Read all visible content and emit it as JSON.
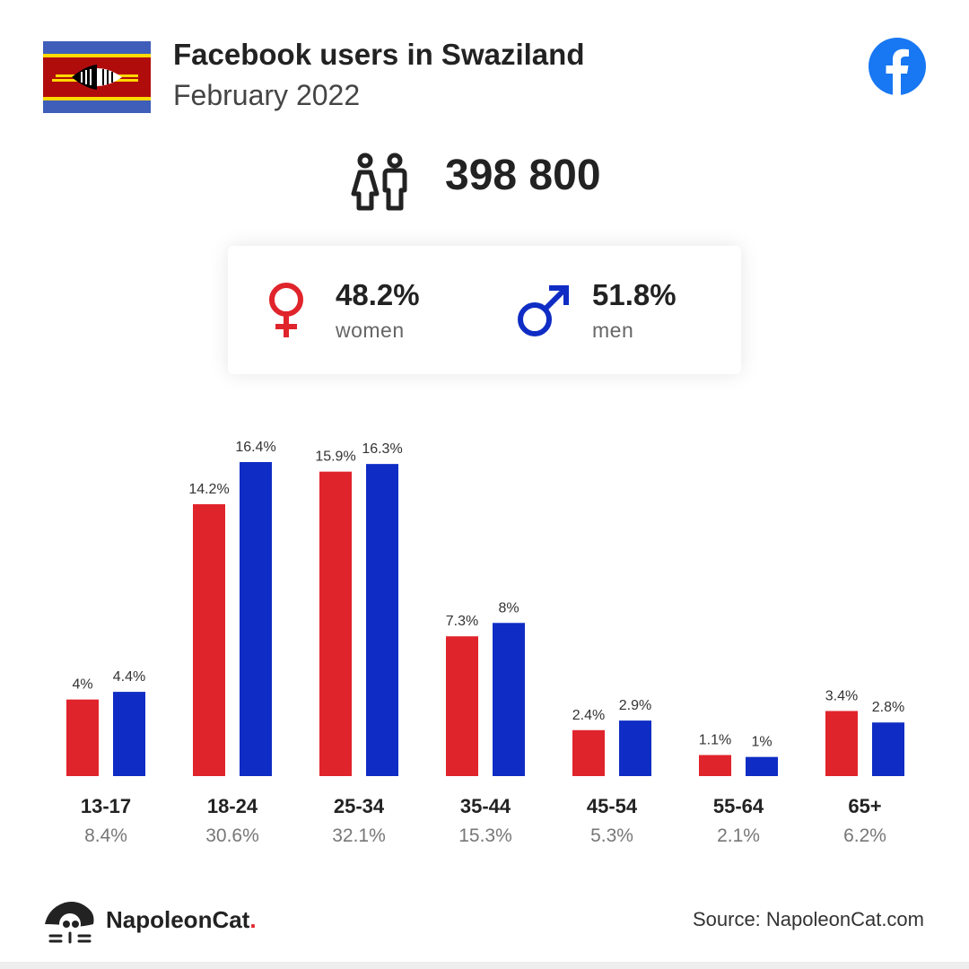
{
  "header": {
    "title": "Facebook users in Swaziland",
    "subtitle": "February 2022",
    "flag_icon": "swaziland-flag-icon",
    "platform_icon": "facebook-icon"
  },
  "summary": {
    "total_users": "398 800",
    "users_icon": "people-icon",
    "women": {
      "pct": "48.2%",
      "label": "women",
      "icon": "female-symbol-icon"
    },
    "men": {
      "pct": "51.8%",
      "label": "men",
      "icon": "male-symbol-icon"
    }
  },
  "colors": {
    "women": "#e0242b",
    "men": "#0f2dc4",
    "facebook": "#1877f2"
  },
  "chart_data": {
    "type": "bar",
    "categories": [
      "13-17",
      "18-24",
      "25-34",
      "35-44",
      "45-54",
      "55-64",
      "65+"
    ],
    "totals": [
      "8.4%",
      "30.6%",
      "32.1%",
      "15.3%",
      "5.3%",
      "2.1%",
      "6.2%"
    ],
    "series": [
      {
        "values": [
          4,
          14.2,
          15.9,
          7.3,
          2.4,
          1.1,
          3.4
        ],
        "labels": [
          "4%",
          "14.2%",
          "15.9%",
          "7.3%",
          "2.4%",
          "1.1%",
          "3.4%"
        ],
        "color": "#e0242b"
      },
      {
        "values": [
          4.4,
          16.4,
          16.3,
          8,
          2.9,
          1,
          2.8
        ],
        "labels": [
          "4.4%",
          "16.4%",
          "16.3%",
          "8%",
          "2.9%",
          "1%",
          "2.8%"
        ],
        "color": "#0f2dc4"
      }
    ],
    "ylim": [
      0,
      16.4
    ],
    "grid": false
  },
  "footer": {
    "brand_name": "NapoleonCat",
    "brand_dot": ".",
    "brand_icon": "napoleoncat-logo-icon",
    "source": "Source: NapoleonCat.com"
  }
}
